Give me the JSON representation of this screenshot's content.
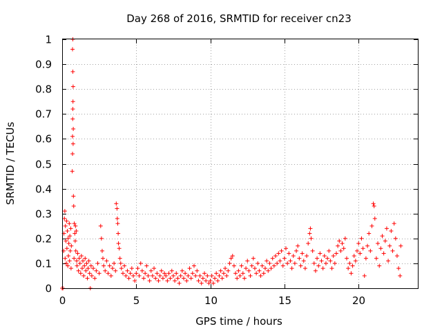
{
  "chart_data": {
    "type": "scatter",
    "title": "Day 268 of 2016, SRMTID for receiver cn23",
    "xlabel": "GPS time / hours",
    "ylabel": "SRMTID / TECUs",
    "xlim": [
      0,
      24
    ],
    "ylim": [
      0,
      1
    ],
    "xticks": [
      0,
      5,
      10,
      15,
      20
    ],
    "xtick_labels": [
      "0",
      "5",
      "10",
      "15",
      "20"
    ],
    "yticks": [
      0,
      0.1,
      0.2,
      0.3,
      0.4,
      0.5,
      0.6,
      0.7,
      0.8,
      0.9,
      1
    ],
    "ytick_labels": [
      "0",
      "0.1",
      "0.2",
      "0.3",
      "0.4",
      "0.5",
      "0.6",
      "0.7",
      "0.8",
      "0.9",
      "1"
    ],
    "grid": true,
    "marker": "+",
    "marker_color": "#ff0000",
    "series": [
      {
        "name": "SRMTID",
        "points": [
          [
            0.0,
            0.0
          ],
          [
            0.05,
            0.0
          ],
          [
            0.1,
            0.15
          ],
          [
            0.12,
            0.22
          ],
          [
            0.15,
            0.28
          ],
          [
            0.18,
            0.31
          ],
          [
            0.2,
            0.12
          ],
          [
            0.22,
            0.25
          ],
          [
            0.25,
            0.19
          ],
          [
            0.28,
            0.1
          ],
          [
            0.3,
            0.27
          ],
          [
            0.32,
            0.16
          ],
          [
            0.35,
            0.23
          ],
          [
            0.38,
            0.09
          ],
          [
            0.4,
            0.2
          ],
          [
            0.42,
            0.13
          ],
          [
            0.45,
            0.18
          ],
          [
            0.48,
            0.26
          ],
          [
            0.5,
            0.11
          ],
          [
            0.52,
            0.21
          ],
          [
            0.55,
            0.15
          ],
          [
            0.58,
            0.24
          ],
          [
            0.6,
            0.08
          ],
          [
            0.62,
            0.17
          ],
          [
            0.68,
            0.47
          ],
          [
            0.7,
            0.54
          ],
          [
            0.7,
            0.61
          ],
          [
            0.71,
            0.68
          ],
          [
            0.72,
            0.72
          ],
          [
            0.73,
            0.75
          ],
          [
            0.74,
            0.81
          ],
          [
            0.72,
            0.87
          ],
          [
            0.7,
            0.96
          ],
          [
            0.72,
            1.0
          ],
          [
            0.74,
            0.58
          ],
          [
            0.76,
            0.37
          ],
          [
            0.78,
            0.33
          ],
          [
            0.75,
            0.64
          ],
          [
            0.8,
            0.12
          ],
          [
            0.82,
            0.26
          ],
          [
            0.85,
            0.22
          ],
          [
            0.88,
            0.19
          ],
          [
            0.9,
            0.25
          ],
          [
            0.92,
            0.15
          ],
          [
            0.95,
            0.23
          ],
          [
            0.98,
            0.11
          ],
          [
            1.0,
            0.09
          ],
          [
            1.05,
            0.14
          ],
          [
            1.1,
            0.07
          ],
          [
            1.15,
            0.12
          ],
          [
            1.2,
            0.1
          ],
          [
            1.25,
            0.06
          ],
          [
            1.3,
            0.13
          ],
          [
            1.35,
            0.08
          ],
          [
            1.4,
            0.11
          ],
          [
            1.45,
            0.05
          ],
          [
            1.5,
            0.09
          ],
          [
            1.55,
            0.12
          ],
          [
            1.6,
            0.07
          ],
          [
            1.65,
            0.1
          ],
          [
            1.7,
            0.04
          ],
          [
            1.75,
            0.08
          ],
          [
            1.8,
            0.11
          ],
          [
            1.85,
            0.06
          ],
          [
            1.9,
            0.0
          ],
          [
            1.95,
            0.09
          ],
          [
            2.0,
            0.05
          ],
          [
            2.1,
            0.08
          ],
          [
            2.2,
            0.04
          ],
          [
            2.3,
            0.07
          ],
          [
            2.4,
            0.1
          ],
          [
            2.5,
            0.06
          ],
          [
            2.6,
            0.25
          ],
          [
            2.65,
            0.2
          ],
          [
            2.7,
            0.15
          ],
          [
            2.75,
            0.12
          ],
          [
            2.8,
            0.09
          ],
          [
            2.9,
            0.07
          ],
          [
            3.0,
            0.11
          ],
          [
            3.1,
            0.06
          ],
          [
            3.2,
            0.09
          ],
          [
            3.3,
            0.05
          ],
          [
            3.4,
            0.08
          ],
          [
            3.5,
            0.1
          ],
          [
            3.6,
            0.07
          ],
          [
            3.65,
            0.34
          ],
          [
            3.7,
            0.32
          ],
          [
            3.72,
            0.28
          ],
          [
            3.75,
            0.26
          ],
          [
            3.78,
            0.22
          ],
          [
            3.8,
            0.18
          ],
          [
            3.85,
            0.16
          ],
          [
            3.9,
            0.12
          ],
          [
            3.95,
            0.1
          ],
          [
            4.0,
            0.08
          ],
          [
            4.1,
            0.06
          ],
          [
            4.2,
            0.09
          ],
          [
            4.3,
            0.05
          ],
          [
            4.4,
            0.07
          ],
          [
            4.5,
            0.04
          ],
          [
            4.6,
            0.06
          ],
          [
            4.7,
            0.08
          ],
          [
            4.8,
            0.05
          ],
          [
            4.9,
            0.03
          ],
          [
            5.0,
            0.06
          ],
          [
            5.1,
            0.08
          ],
          [
            5.2,
            0.05
          ],
          [
            5.3,
            0.1
          ],
          [
            5.4,
            0.07
          ],
          [
            5.5,
            0.04
          ],
          [
            5.6,
            0.06
          ],
          [
            5.7,
            0.09
          ],
          [
            5.8,
            0.05
          ],
          [
            5.9,
            0.03
          ],
          [
            6.0,
            0.07
          ],
          [
            6.1,
            0.05
          ],
          [
            6.2,
            0.08
          ],
          [
            6.3,
            0.04
          ],
          [
            6.4,
            0.06
          ],
          [
            6.5,
            0.03
          ],
          [
            6.6,
            0.05
          ],
          [
            6.7,
            0.07
          ],
          [
            6.8,
            0.04
          ],
          [
            6.9,
            0.06
          ],
          [
            7.0,
            0.05
          ],
          [
            7.1,
            0.03
          ],
          [
            7.2,
            0.06
          ],
          [
            7.3,
            0.04
          ],
          [
            7.4,
            0.07
          ],
          [
            7.5,
            0.05
          ],
          [
            7.6,
            0.03
          ],
          [
            7.7,
            0.06
          ],
          [
            7.8,
            0.04
          ],
          [
            7.9,
            0.02
          ],
          [
            8.0,
            0.05
          ],
          [
            8.1,
            0.07
          ],
          [
            8.2,
            0.04
          ],
          [
            8.3,
            0.06
          ],
          [
            8.4,
            0.03
          ],
          [
            8.5,
            0.05
          ],
          [
            8.6,
            0.08
          ],
          [
            8.7,
            0.04
          ],
          [
            8.8,
            0.06
          ],
          [
            8.9,
            0.09
          ],
          [
            9.0,
            0.05
          ],
          [
            9.1,
            0.07
          ],
          [
            9.2,
            0.03
          ],
          [
            9.3,
            0.05
          ],
          [
            9.4,
            0.02
          ],
          [
            9.5,
            0.04
          ],
          [
            9.6,
            0.06
          ],
          [
            9.7,
            0.03
          ],
          [
            9.8,
            0.05
          ],
          [
            9.9,
            0.02
          ],
          [
            10.0,
            0.03
          ],
          [
            10.1,
            0.05
          ],
          [
            10.2,
            0.02
          ],
          [
            10.3,
            0.04
          ],
          [
            10.4,
            0.06
          ],
          [
            10.5,
            0.03
          ],
          [
            10.6,
            0.05
          ],
          [
            10.7,
            0.07
          ],
          [
            10.8,
            0.04
          ],
          [
            10.9,
            0.06
          ],
          [
            11.0,
            0.08
          ],
          [
            11.1,
            0.05
          ],
          [
            11.2,
            0.07
          ],
          [
            11.3,
            0.1
          ],
          [
            11.4,
            0.12
          ],
          [
            11.5,
            0.13
          ],
          [
            11.6,
            0.09
          ],
          [
            11.7,
            0.06
          ],
          [
            11.8,
            0.04
          ],
          [
            11.9,
            0.07
          ],
          [
            12.0,
            0.05
          ],
          [
            12.1,
            0.09
          ],
          [
            12.2,
            0.06
          ],
          [
            12.3,
            0.04
          ],
          [
            12.4,
            0.08
          ],
          [
            12.5,
            0.11
          ],
          [
            12.6,
            0.07
          ],
          [
            12.7,
            0.05
          ],
          [
            12.8,
            0.09
          ],
          [
            12.9,
            0.12
          ],
          [
            13.0,
            0.08
          ],
          [
            13.1,
            0.06
          ],
          [
            13.2,
            0.1
          ],
          [
            13.3,
            0.07
          ],
          [
            13.4,
            0.05
          ],
          [
            13.5,
            0.09
          ],
          [
            13.6,
            0.06
          ],
          [
            13.7,
            0.08
          ],
          [
            13.8,
            0.11
          ],
          [
            13.9,
            0.07
          ],
          [
            14.0,
            0.1
          ],
          [
            14.1,
            0.08
          ],
          [
            14.2,
            0.12
          ],
          [
            14.3,
            0.09
          ],
          [
            14.4,
            0.13
          ],
          [
            14.5,
            0.1
          ],
          [
            14.6,
            0.14
          ],
          [
            14.7,
            0.11
          ],
          [
            14.8,
            0.15
          ],
          [
            14.9,
            0.09
          ],
          [
            15.0,
            0.12
          ],
          [
            15.1,
            0.16
          ],
          [
            15.2,
            0.1
          ],
          [
            15.3,
            0.14
          ],
          [
            15.4,
            0.11
          ],
          [
            15.5,
            0.08
          ],
          [
            15.6,
            0.13
          ],
          [
            15.7,
            0.1
          ],
          [
            15.8,
            0.15
          ],
          [
            15.9,
            0.17
          ],
          [
            16.0,
            0.12
          ],
          [
            16.1,
            0.09
          ],
          [
            16.2,
            0.14
          ],
          [
            16.3,
            0.11
          ],
          [
            16.4,
            0.08
          ],
          [
            16.5,
            0.13
          ],
          [
            16.6,
            0.18
          ],
          [
            16.7,
            0.22
          ],
          [
            16.75,
            0.24
          ],
          [
            16.8,
            0.2
          ],
          [
            16.9,
            0.15
          ],
          [
            17.0,
            0.1
          ],
          [
            17.1,
            0.07
          ],
          [
            17.2,
            0.12
          ],
          [
            17.3,
            0.09
          ],
          [
            17.4,
            0.14
          ],
          [
            17.5,
            0.11
          ],
          [
            17.6,
            0.08
          ],
          [
            17.7,
            0.13
          ],
          [
            17.8,
            0.1
          ],
          [
            17.9,
            0.12
          ],
          [
            18.0,
            0.15
          ],
          [
            18.1,
            0.11
          ],
          [
            18.2,
            0.08
          ],
          [
            18.3,
            0.13
          ],
          [
            18.4,
            0.1
          ],
          [
            18.5,
            0.14
          ],
          [
            18.6,
            0.17
          ],
          [
            18.7,
            0.19
          ],
          [
            18.8,
            0.15
          ],
          [
            18.9,
            0.18
          ],
          [
            19.0,
            0.16
          ],
          [
            19.1,
            0.2
          ],
          [
            19.2,
            0.12
          ],
          [
            19.3,
            0.08
          ],
          [
            19.4,
            0.1
          ],
          [
            19.5,
            0.06
          ],
          [
            19.6,
            0.09
          ],
          [
            19.7,
            0.13
          ],
          [
            19.8,
            0.11
          ],
          [
            19.9,
            0.15
          ],
          [
            20.0,
            0.18
          ],
          [
            20.1,
            0.14
          ],
          [
            20.2,
            0.2
          ],
          [
            20.3,
            0.16
          ],
          [
            20.4,
            0.05
          ],
          [
            20.5,
            0.12
          ],
          [
            20.6,
            0.17
          ],
          [
            20.7,
            0.22
          ],
          [
            20.8,
            0.15
          ],
          [
            20.9,
            0.25
          ],
          [
            21.0,
            0.34
          ],
          [
            21.05,
            0.33
          ],
          [
            21.1,
            0.28
          ],
          [
            21.2,
            0.12
          ],
          [
            21.3,
            0.18
          ],
          [
            21.4,
            0.09
          ],
          [
            21.5,
            0.16
          ],
          [
            21.6,
            0.21
          ],
          [
            21.7,
            0.14
          ],
          [
            21.8,
            0.19
          ],
          [
            21.9,
            0.24
          ],
          [
            22.0,
            0.11
          ],
          [
            22.1,
            0.17
          ],
          [
            22.2,
            0.23
          ],
          [
            22.3,
            0.15
          ],
          [
            22.4,
            0.26
          ],
          [
            22.5,
            0.2
          ],
          [
            22.6,
            0.13
          ],
          [
            22.7,
            0.08
          ],
          [
            22.8,
            0.05
          ],
          [
            22.85,
            0.17
          ]
        ]
      }
    ]
  }
}
